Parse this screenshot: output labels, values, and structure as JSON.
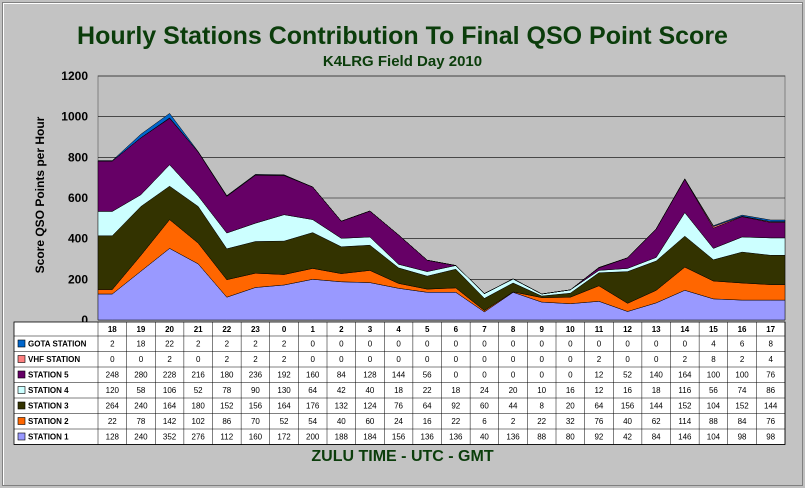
{
  "chart_data": {
    "type": "area",
    "stacked": true,
    "title": "Hourly Stations Contribution To Final QSO Point Score",
    "subtitle": "K4LRG Field Day 2010",
    "xlabel": "ZULU TIME  -  UTC  -  GMT",
    "ylabel": "Score QSO Points  per  Hour",
    "ylim": [
      0,
      1200
    ],
    "yticks": [
      0,
      200,
      400,
      600,
      800,
      1000,
      1200
    ],
    "grid": true,
    "legend": "data-table",
    "categories": [
      "18",
      "19",
      "20",
      "21",
      "22",
      "23",
      "0",
      "1",
      "2",
      "3",
      "4",
      "5",
      "6",
      "7",
      "8",
      "9",
      "10",
      "11",
      "12",
      "13",
      "14",
      "15",
      "16",
      "17"
    ],
    "series": [
      {
        "name": "STATION 1",
        "color": "#9999ff",
        "values": [
          128,
          240,
          352,
          276,
          112,
          160,
          172,
          200,
          188,
          184,
          156,
          136,
          136,
          40,
          136,
          88,
          80,
          92,
          42,
          84,
          146,
          104,
          98,
          98
        ]
      },
      {
        "name": "STATION 2",
        "color": "#ff6600",
        "values": [
          22,
          78,
          142,
          102,
          86,
          70,
          52,
          54,
          40,
          60,
          24,
          16,
          22,
          6,
          2,
          22,
          32,
          76,
          40,
          62,
          114,
          88,
          84,
          76
        ]
      },
      {
        "name": "STATION 3",
        "color": "#333300",
        "values": [
          264,
          240,
          164,
          180,
          152,
          156,
          164,
          176,
          132,
          124,
          76,
          64,
          92,
          60,
          44,
          8,
          20,
          64,
          156,
          144,
          152,
          104,
          152,
          144
        ]
      },
      {
        "name": "STATION 4",
        "color": "#ccffff",
        "values": [
          120,
          58,
          106,
          52,
          78,
          90,
          130,
          64,
          42,
          40,
          18,
          22,
          18,
          24,
          20,
          10,
          16,
          12,
          16,
          18,
          116,
          56,
          74,
          86
        ]
      },
      {
        "name": "STATION 5",
        "color": "#660066",
        "values": [
          248,
          280,
          228,
          216,
          180,
          236,
          192,
          160,
          84,
          128,
          144,
          56,
          0,
          0,
          0,
          0,
          0,
          12,
          52,
          140,
          164,
          100,
          100,
          76
        ]
      },
      {
        "name": "VHF STATION",
        "color": "#ff8080",
        "values": [
          0,
          0,
          2,
          0,
          2,
          2,
          2,
          0,
          0,
          0,
          0,
          0,
          0,
          0,
          0,
          0,
          0,
          2,
          0,
          0,
          2,
          8,
          2,
          4
        ]
      },
      {
        "name": "GOTA STATION",
        "color": "#0066cc",
        "values": [
          2,
          18,
          22,
          2,
          2,
          2,
          2,
          0,
          0,
          0,
          0,
          0,
          0,
          0,
          0,
          0,
          0,
          0,
          0,
          0,
          0,
          4,
          6,
          8
        ]
      }
    ]
  }
}
